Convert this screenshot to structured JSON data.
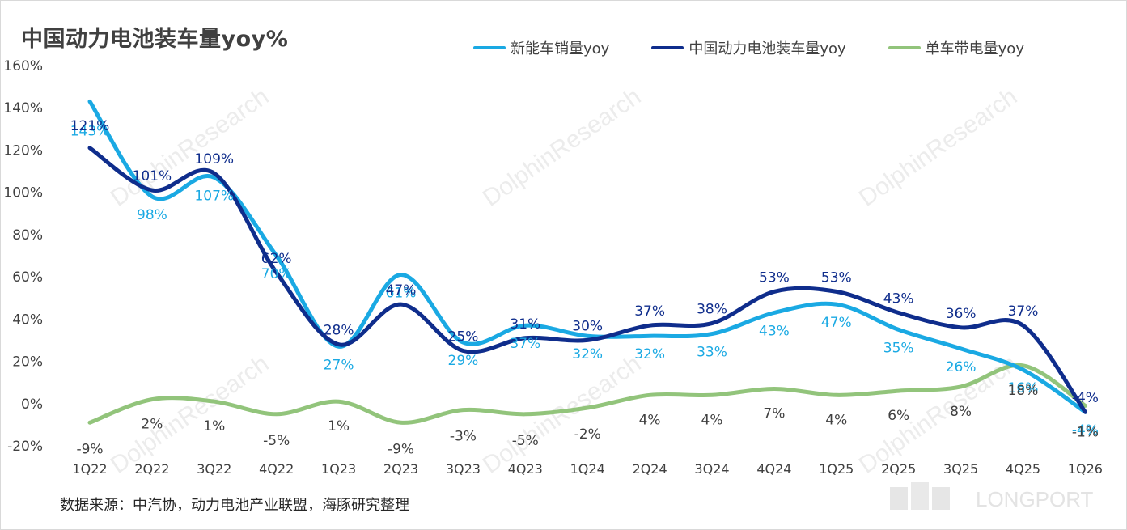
{
  "title": "中国动力电池装车量yoy%",
  "source": "数据来源：中汽协，动力电池产业联盟，海豚研究整理",
  "watermark": "DolphinResearch",
  "brand": "LONGPORT",
  "chart_data": {
    "type": "line",
    "title": "中国动力电池装车量yoy%",
    "categories": [
      "1Q22",
      "2Q22",
      "3Q22",
      "4Q22",
      "1Q23",
      "2Q23",
      "3Q23",
      "4Q23",
      "1Q24",
      "2Q24",
      "3Q24",
      "4Q24",
      "1Q25",
      "2Q25",
      "3Q25",
      "4Q25",
      "1Q26"
    ],
    "y_ticks": [
      "-20%",
      "0%",
      "20%",
      "40%",
      "60%",
      "80%",
      "100%",
      "120%",
      "140%",
      "160%"
    ],
    "ylim": [
      -20,
      160
    ],
    "y_unit": "%",
    "grid": false,
    "legend_position": "top",
    "series": [
      {
        "name": "新能车销量yoy",
        "color": "#1aa9e3",
        "values": [
          143,
          98,
          107,
          70,
          27,
          61,
          29,
          37,
          32,
          32,
          33,
          43,
          47,
          35,
          26,
          16,
          -4
        ]
      },
      {
        "name": "中国动力电池装车量yoy",
        "color": "#0f2d8c",
        "values": [
          121,
          101,
          109,
          62,
          28,
          47,
          25,
          31,
          30,
          37,
          38,
          53,
          53,
          43,
          36,
          37,
          -4
        ]
      },
      {
        "name": "单车带电量yoy",
        "color": "#92c47b",
        "values": [
          -9,
          2,
          1,
          -5,
          1,
          -9,
          -3,
          -5,
          -2,
          4,
          4,
          7,
          4,
          6,
          8,
          18,
          -1
        ]
      }
    ]
  }
}
